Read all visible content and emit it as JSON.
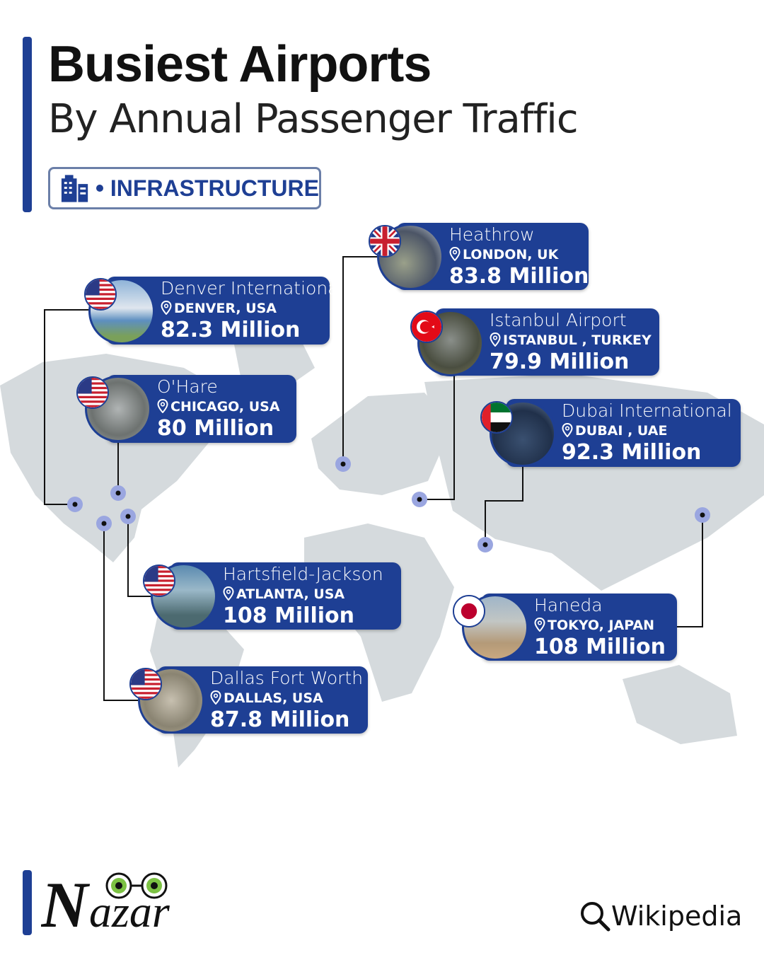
{
  "header": {
    "title": "Busiest Airports",
    "subtitle": "By Annual Passenger Traffic",
    "tag": "INFRASTRUCTURE",
    "tag_icon": "building-icon"
  },
  "colors": {
    "accent": "#1e3f94",
    "map": "#d5dadd",
    "marker": "#9aa6e0"
  },
  "airports": [
    {
      "name": "Heathrow",
      "location": "LONDON, UK",
      "passengers": "83.8 Million",
      "flag": "uk"
    },
    {
      "name": "Denver International",
      "location": "DENVER, USA",
      "passengers": "82.3 Million",
      "flag": "usa"
    },
    {
      "name": "Istanbul Airport",
      "location": "ISTANBUL , TURKEY",
      "passengers": "79.9 Million",
      "flag": "turkey"
    },
    {
      "name": "O'Hare",
      "location": "CHICAGO, USA",
      "passengers": "80 Million",
      "flag": "usa"
    },
    {
      "name": "Dubai International",
      "location": "DUBAI , UAE",
      "passengers": "92.3 Million",
      "flag": "uae"
    },
    {
      "name": "Hartsfield-Jackson",
      "location": "ATLANTA, USA",
      "passengers": "108 Million",
      "flag": "usa"
    },
    {
      "name": "Haneda",
      "location": "TOKYO, JAPAN",
      "passengers": "108 Million",
      "flag": "japan"
    },
    {
      "name": "Dallas Fort Worth",
      "location": "DALLAS, USA",
      "passengers": "87.8 Million",
      "flag": "usa"
    }
  ],
  "footer": {
    "logo": "Nazar",
    "source": "Wikipedia",
    "source_icon": "search-icon"
  }
}
